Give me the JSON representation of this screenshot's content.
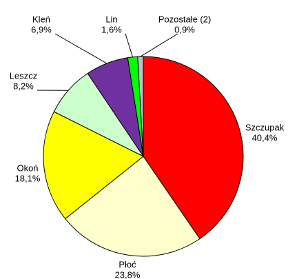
{
  "chart_data": {
    "type": "pie",
    "categories": [
      "Szczupak",
      "Płoć",
      "Okoń",
      "Leszcz",
      "Kleń",
      "Lin",
      "Pozostałe (2)"
    ],
    "values": [
      40.4,
      23.8,
      18.1,
      8.2,
      6.9,
      1.6,
      0.9
    ],
    "value_labels": [
      "40,4%",
      "23,8%",
      "18,1%",
      "8,2%",
      "6,9%",
      "1,6%",
      "0,9%"
    ],
    "colors": [
      "#ff0000",
      "#ffffcc",
      "#ffff00",
      "#ccffcc",
      "#7030a0",
      "#00ff00",
      "#c0c0c0"
    ]
  }
}
